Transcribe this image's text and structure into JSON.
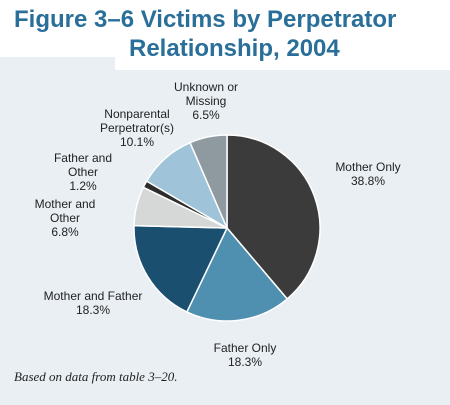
{
  "figure": {
    "title_line1": "Figure 3–6 Victims by Perpetrator",
    "title_line2": "Relationship, 2004",
    "note": "Based on data from table 3–20."
  },
  "chart_data": {
    "type": "pie",
    "title": "Figure 3–6 Victims by Perpetrator Relationship, 2004",
    "slices": [
      {
        "label": "Mother Only",
        "value": 38.8,
        "display": "38.8%",
        "color": "#3b3b3b"
      },
      {
        "label": "Father Only",
        "value": 18.3,
        "display": "18.3%",
        "color": "#4f8fb0"
      },
      {
        "label": "Mother and Father",
        "value": 18.3,
        "display": "18.3%",
        "color": "#1a4f70"
      },
      {
        "label": "Mother and Other",
        "value": 6.8,
        "display": "6.8%",
        "color": "#d6d8d8"
      },
      {
        "label": "Father and Other",
        "value": 1.2,
        "display": "1.2%",
        "color": "#2d2d2d"
      },
      {
        "label": "Nonparental Perpetrator(s)",
        "value": 10.1,
        "display": "10.1%",
        "color": "#9fc3d8"
      },
      {
        "label": "Unknown or Missing",
        "value": 6.5,
        "display": "6.5%",
        "color": "#8f9aa0"
      }
    ],
    "label_text": [
      "Mother Only",
      "Father Only",
      "Mother and Father",
      "Mother and\nOther",
      "Father and\nOther",
      "Nonparental\nPerpetrator(s)",
      "Unknown or\nMissing"
    ]
  }
}
